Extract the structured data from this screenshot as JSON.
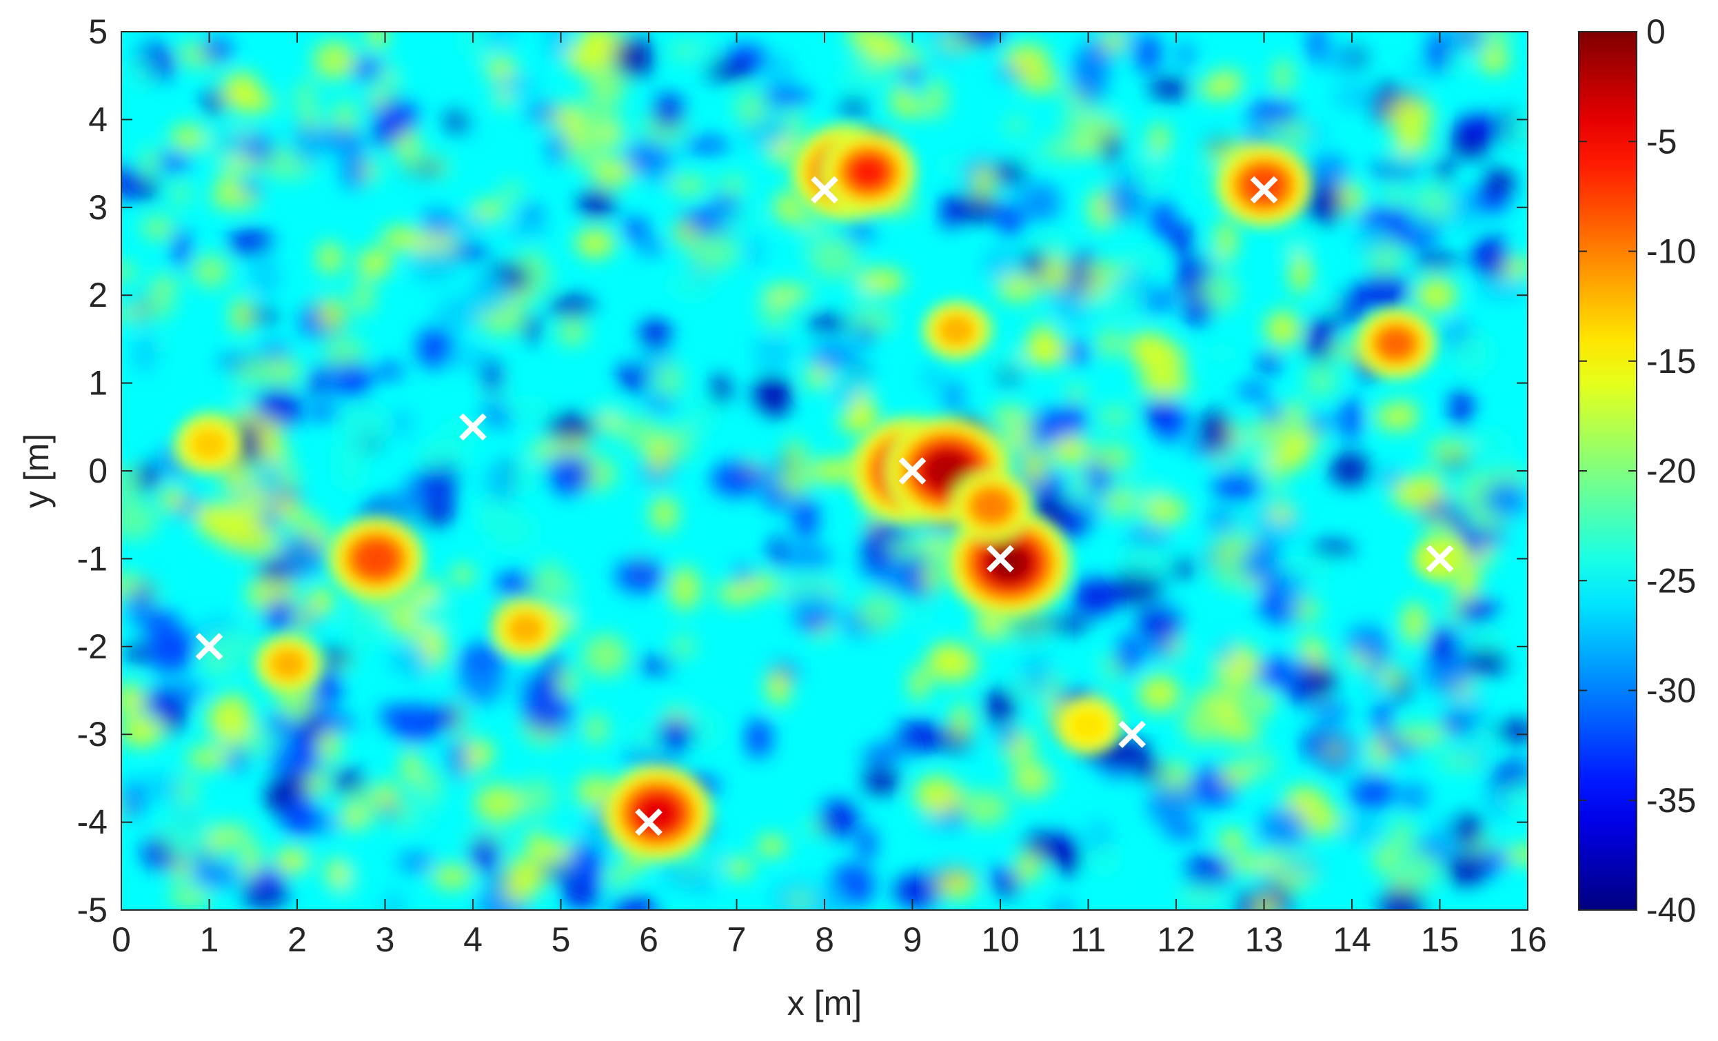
{
  "chart_data": {
    "type": "heatmap",
    "title": "",
    "xlabel": "x [m]",
    "ylabel": "y [m]",
    "xlim": [
      0,
      16
    ],
    "ylim": [
      -5,
      5
    ],
    "xticks": [
      0,
      1,
      2,
      3,
      4,
      5,
      6,
      7,
      8,
      9,
      10,
      11,
      12,
      13,
      14,
      15,
      16
    ],
    "yticks": [
      5,
      4,
      3,
      2,
      1,
      0,
      -1,
      -2,
      -3,
      -4,
      -5
    ],
    "colorbar": {
      "colormap": "jet",
      "range": [
        -40,
        0
      ],
      "ticks": [
        0,
        -5,
        -10,
        -15,
        -20,
        -25,
        -30,
        -35,
        -40
      ]
    },
    "background_level_db": -25,
    "hotspots": [
      {
        "x": 9.0,
        "y": 0.0,
        "level_db": 0
      },
      {
        "x": 9.4,
        "y": 0.0,
        "level_db": -2
      },
      {
        "x": 10.1,
        "y": -1.05,
        "level_db": -1
      },
      {
        "x": 9.9,
        "y": -0.4,
        "level_db": -10
      },
      {
        "x": 8.25,
        "y": 3.4,
        "level_db": -4
      },
      {
        "x": 8.5,
        "y": 3.4,
        "level_db": -6
      },
      {
        "x": 6.1,
        "y": -3.9,
        "level_db": -4
      },
      {
        "x": 2.9,
        "y": -1.0,
        "level_db": -8
      },
      {
        "x": 13.0,
        "y": 3.25,
        "level_db": -8
      },
      {
        "x": 14.5,
        "y": 1.45,
        "level_db": -9
      },
      {
        "x": 9.5,
        "y": 1.6,
        "level_db": -12
      },
      {
        "x": 11.0,
        "y": -2.9,
        "level_db": -14
      },
      {
        "x": 1.0,
        "y": 0.3,
        "level_db": -13
      },
      {
        "x": 1.9,
        "y": -2.2,
        "level_db": -12
      },
      {
        "x": 4.6,
        "y": -1.8,
        "level_db": -12
      },
      {
        "x": 15.0,
        "y": -1.0,
        "level_db": -17
      }
    ],
    "markers": {
      "symbol": "x",
      "color": "#ffffff",
      "points": [
        {
          "x": 1,
          "y": -2
        },
        {
          "x": 4,
          "y": 0.5
        },
        {
          "x": 6,
          "y": -4
        },
        {
          "x": 8,
          "y": 3.2
        },
        {
          "x": 9,
          "y": 0
        },
        {
          "x": 10,
          "y": -1
        },
        {
          "x": 11.5,
          "y": -3
        },
        {
          "x": 13,
          "y": 3.2
        },
        {
          "x": 15,
          "y": -1
        }
      ]
    }
  }
}
